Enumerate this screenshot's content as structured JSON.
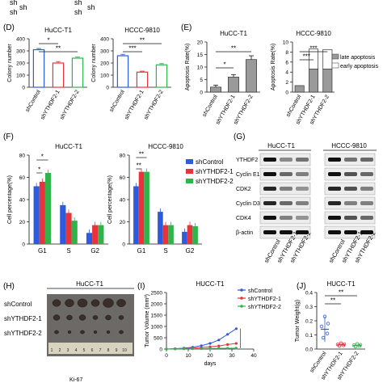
{
  "top_strip": {
    "labels": [
      "sh",
      "sh",
      "sh",
      "sh",
      "sh",
      "sh"
    ]
  },
  "colors": {
    "control": "#2e5bd9",
    "sh1": "#e8323c",
    "sh2": "#2fb34b",
    "late": "#9a9a9a",
    "early": "#ffffff"
  },
  "panel_letters": {
    "D": "(D)",
    "E": "(E)",
    "F": "(F)",
    "G": "(G)",
    "H": "(H)",
    "I": "(I)",
    "J": "(J)"
  },
  "groups": [
    "shControl",
    "shYTHDF2-1",
    "shYTHDF2-2"
  ],
  "sig": {
    "one": "*",
    "two": "**",
    "three": "***"
  },
  "chart_data": [
    {
      "panel": "D",
      "type": "bar",
      "title": "HuCC-T1",
      "ylabel": "Colony number",
      "ylim": [
        0,
        400
      ],
      "yticks": [
        "0",
        "100",
        "200",
        "300",
        "400"
      ],
      "categories": [
        "shControl",
        "shYTHDF2-1",
        "shYTHDF2-2"
      ],
      "values": [
        310,
        200,
        240
      ]
    },
    {
      "panel": "D",
      "type": "bar",
      "title": "HCCC-9810",
      "ylabel": "Colony number",
      "ylim": [
        0,
        400
      ],
      "yticks": [
        "0",
        "100",
        "200",
        "300",
        "400"
      ],
      "categories": [
        "shControl",
        "shYTHDF2-1",
        "shYTHDF2-2"
      ],
      "values": [
        260,
        125,
        185
      ]
    },
    {
      "panel": "E",
      "type": "bar",
      "title": "HuCC-T1",
      "ylabel": "Apoptosis Rate(%)",
      "ylim": [
        0,
        20
      ],
      "yticks": [
        "0",
        "5",
        "10",
        "15",
        "20"
      ],
      "categories": [
        "shControl",
        "shYTHDF2-1",
        "shYTHDF2-2"
      ],
      "values": [
        2,
        6,
        13
      ]
    },
    {
      "panel": "E",
      "type": "bar",
      "title": "HCCC-9810",
      "ylabel": "Apoptosis Rate(%)",
      "ylim": [
        0,
        10
      ],
      "yticks": [
        "0",
        "2",
        "4",
        "6",
        "8",
        "10"
      ],
      "legend": [
        "late apoptosis",
        "early apoptosis"
      ],
      "categories": [
        "shControl",
        "shYTHDF2-1",
        "shYTHDF2-2"
      ],
      "series": [
        {
          "name": "late apoptosis",
          "values": [
            1.3,
            4.6,
            4.6
          ]
        },
        {
          "name": "early apoptosis",
          "values": [
            0.0,
            4.0,
            3.9
          ]
        }
      ]
    },
    {
      "panel": "F",
      "type": "bar",
      "title": "HuCC-T1",
      "ylabel": "Cell percentage(%)",
      "ylim": [
        0,
        80
      ],
      "yticks": [
        "0",
        "20",
        "40",
        "60",
        "80"
      ],
      "categories": [
        "G1",
        "S",
        "G2"
      ],
      "series": [
        {
          "name": "shControl",
          "values": [
            52,
            35,
            10
          ]
        },
        {
          "name": "shYTHDF2-1",
          "values": [
            56,
            28,
            17
          ]
        },
        {
          "name": "shYTHDF2-2",
          "values": [
            64,
            21,
            17
          ]
        }
      ]
    },
    {
      "panel": "F",
      "type": "bar",
      "title": "HCCC-9810",
      "ylabel": "Cell percentage(%)",
      "ylim": [
        0,
        80
      ],
      "yticks": [
        "0",
        "20",
        "40",
        "60",
        "80"
      ],
      "categories": [
        "G1",
        "S",
        "G2"
      ],
      "legend": [
        "shControl",
        "shYTHDF2-1",
        "shYTHDF2-2"
      ],
      "series": [
        {
          "name": "shControl",
          "values": [
            52,
            29,
            11
          ]
        },
        {
          "name": "shYTHDF2-1",
          "values": [
            65,
            17,
            17
          ]
        },
        {
          "name": "shYTHDF2-2",
          "values": [
            65,
            17,
            16
          ]
        }
      ]
    },
    {
      "panel": "I",
      "type": "line",
      "title": "HUCC-T1",
      "ylabel": "Tumor Volume (mm³)",
      "xlabel": "days",
      "xlim": [
        0,
        40
      ],
      "ylim": [
        0,
        2500
      ],
      "xticks": [
        "0",
        "10",
        "20",
        "30",
        "40"
      ],
      "yticks": [
        "0",
        "500",
        "1000",
        "1500",
        "2000",
        "2500"
      ],
      "legend": [
        "shControl",
        "shYTHDF2-1",
        "shYTHDF2-2"
      ],
      "x": [
        0,
        4,
        8,
        12,
        16,
        20,
        24,
        28,
        32
      ],
      "series": [
        {
          "name": "shControl",
          "values": [
            0,
            20,
            40,
            80,
            150,
            250,
            400,
            650,
            900
          ]
        },
        {
          "name": "shYTHDF2-1",
          "values": [
            0,
            10,
            20,
            40,
            70,
            100,
            140,
            200,
            250
          ]
        },
        {
          "name": "shYTHDF2-2",
          "values": [
            0,
            5,
            10,
            15,
            20,
            25,
            30,
            35,
            40
          ]
        }
      ]
    },
    {
      "panel": "J",
      "type": "bar",
      "title": "HUCC-T1",
      "ylabel": "Tumor Weight(g)",
      "ylim": [
        0,
        0.4
      ],
      "yticks": [
        "0.0",
        "0.1",
        "0.2",
        "0.3",
        "0.4"
      ],
      "categories": [
        "shControl",
        "shYTHDF2-1",
        "shYTHDF2-2"
      ],
      "values": [
        0.14,
        0.03,
        0.025
      ]
    }
  ],
  "blot": {
    "titles": [
      "HuCC-T1",
      "HCCC-9810"
    ],
    "rows": [
      "YTHDF2",
      "Cyclin E1",
      "CDK2",
      "Cyclin D3",
      "CDK4",
      "β-actin"
    ]
  },
  "tumor_panel": {
    "title": "HuCC-T1",
    "rows": [
      "shControl",
      "shYTHDF2-1",
      "shYTHDF2-2"
    ],
    "ruler_numbers": [
      "1",
      "2",
      "3",
      "4",
      "5",
      "6",
      "7",
      "8",
      "9",
      "10"
    ]
  },
  "bottom_fragment": {
    "text": "Ki-67"
  }
}
